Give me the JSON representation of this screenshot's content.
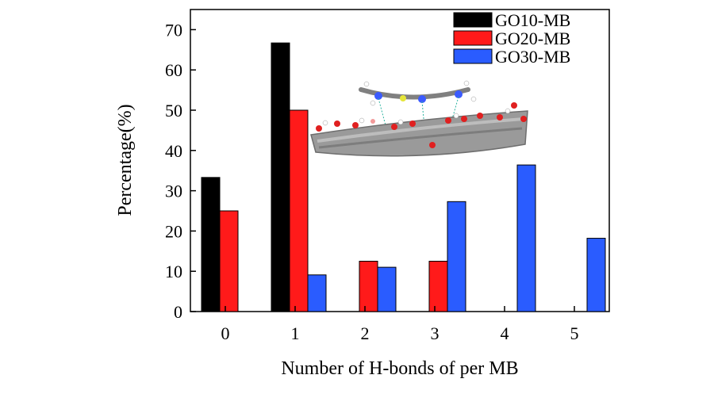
{
  "chart_data": {
    "type": "bar",
    "title": "",
    "xlabel": "Number of H-bonds of per MB",
    "ylabel": "Percentage(%)",
    "ylim": [
      0,
      75
    ],
    "yticks": [
      "0",
      "10",
      "20",
      "30",
      "40",
      "50",
      "60",
      "70"
    ],
    "categories": [
      "0",
      "1",
      "2",
      "3",
      "4",
      "5"
    ],
    "series": [
      {
        "name": "GO10-MB",
        "color": "#000000",
        "values": [
          33.3,
          66.7,
          null,
          null,
          null,
          null
        ]
      },
      {
        "name": "GO20-MB",
        "color": "#ff1a1a",
        "values": [
          25.0,
          50.0,
          12.5,
          12.5,
          null,
          null
        ]
      },
      {
        "name": "GO30-MB",
        "color": "#2a5cff",
        "values": [
          null,
          9.1,
          11.0,
          27.3,
          36.4,
          18.2
        ]
      }
    ],
    "legend_position": "top-right",
    "grid": false,
    "inset": "molecular model of MB on graphene oxide sheet"
  }
}
